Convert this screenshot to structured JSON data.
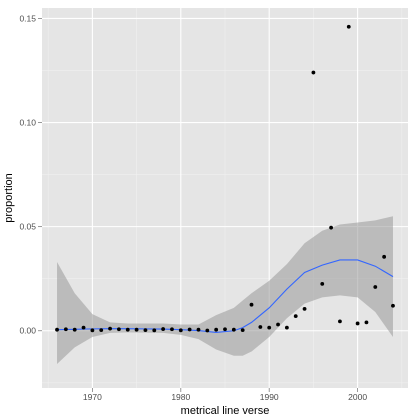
{
  "chart_data": {
    "type": "scatter",
    "title": "",
    "xlabel": "metrical line verse",
    "ylabel": "proportion",
    "xlim": [
      1964.3,
      2005.7
    ],
    "ylim": [
      -0.0275,
      0.155
    ],
    "x_ticks": [
      1970,
      1980,
      1990,
      2000
    ],
    "y_ticks": [
      0.0,
      0.05,
      0.1,
      0.15
    ],
    "x_tick_labels": [
      "1970",
      "1980",
      "1990",
      "2000"
    ],
    "y_tick_labels": [
      "0.00",
      "0.05",
      "0.10",
      "0.15"
    ],
    "grid": true,
    "legend": "none",
    "points": {
      "x": [
        1966,
        1967,
        1968,
        1969,
        1970,
        1971,
        1972,
        1973,
        1974,
        1975,
        1976,
        1977,
        1978,
        1979,
        1980,
        1981,
        1982,
        1983,
        1984,
        1985,
        1986,
        1987,
        1988,
        1989,
        1990,
        1991,
        1992,
        1993,
        1994,
        1995,
        1996,
        1997,
        1998,
        1999,
        2000,
        2001,
        2002,
        2003,
        2004
      ],
      "y": [
        0.0005,
        0.0007,
        0.0005,
        0.0015,
        0.0002,
        0.0003,
        0.001,
        0.0007,
        0.0005,
        0.0005,
        0.0003,
        0.0002,
        0.0008,
        0.0007,
        0.0002,
        0.0006,
        0.0005,
        0.0001,
        0.0005,
        0.0007,
        0.0005,
        0.0003,
        0.0125,
        0.0018,
        0.0015,
        0.003,
        0.0015,
        0.007,
        0.0105,
        0.124,
        0.0225,
        0.0495,
        0.0045,
        0.146,
        0.0035,
        0.004,
        0.021,
        0.0355,
        0.012
      ]
    },
    "smooth": {
      "name": "loess",
      "x": [
        1966,
        1968,
        1970,
        1972,
        1974,
        1976,
        1978,
        1980,
        1982,
        1984,
        1986,
        1987,
        1988,
        1990,
        1992,
        1994,
        1996,
        1998,
        2000,
        2002,
        2004
      ],
      "y": [
        0.0005,
        0.0007,
        0.0009,
        0.001,
        0.001,
        0.0009,
        0.0008,
        0.0005,
        0.0001,
        -0.0008,
        0.0,
        0.0015,
        0.004,
        0.011,
        0.02,
        0.028,
        0.0315,
        0.034,
        0.034,
        0.031,
        0.026
      ],
      "ci_lower": [
        -0.016,
        -0.008,
        -0.003,
        -0.001,
        -0.0008,
        -0.0009,
        -0.001,
        -0.002,
        -0.004,
        -0.009,
        -0.012,
        -0.012,
        -0.01,
        -0.003,
        0.006,
        0.013,
        0.016,
        0.017,
        0.016,
        0.009,
        -0.003
      ],
      "ci_upper": [
        0.033,
        0.018,
        0.008,
        0.004,
        0.0035,
        0.0035,
        0.0035,
        0.003,
        0.003,
        0.0075,
        0.011,
        0.0145,
        0.018,
        0.024,
        0.032,
        0.042,
        0.048,
        0.051,
        0.052,
        0.053,
        0.055
      ]
    },
    "colors": {
      "panel_background": "#e5e5e5",
      "grid_major": "#ffffff",
      "grid_minor": "#f0f0f0",
      "ribbon": "#999999",
      "smooth_line": "#3366ff",
      "points": "#000000"
    }
  }
}
